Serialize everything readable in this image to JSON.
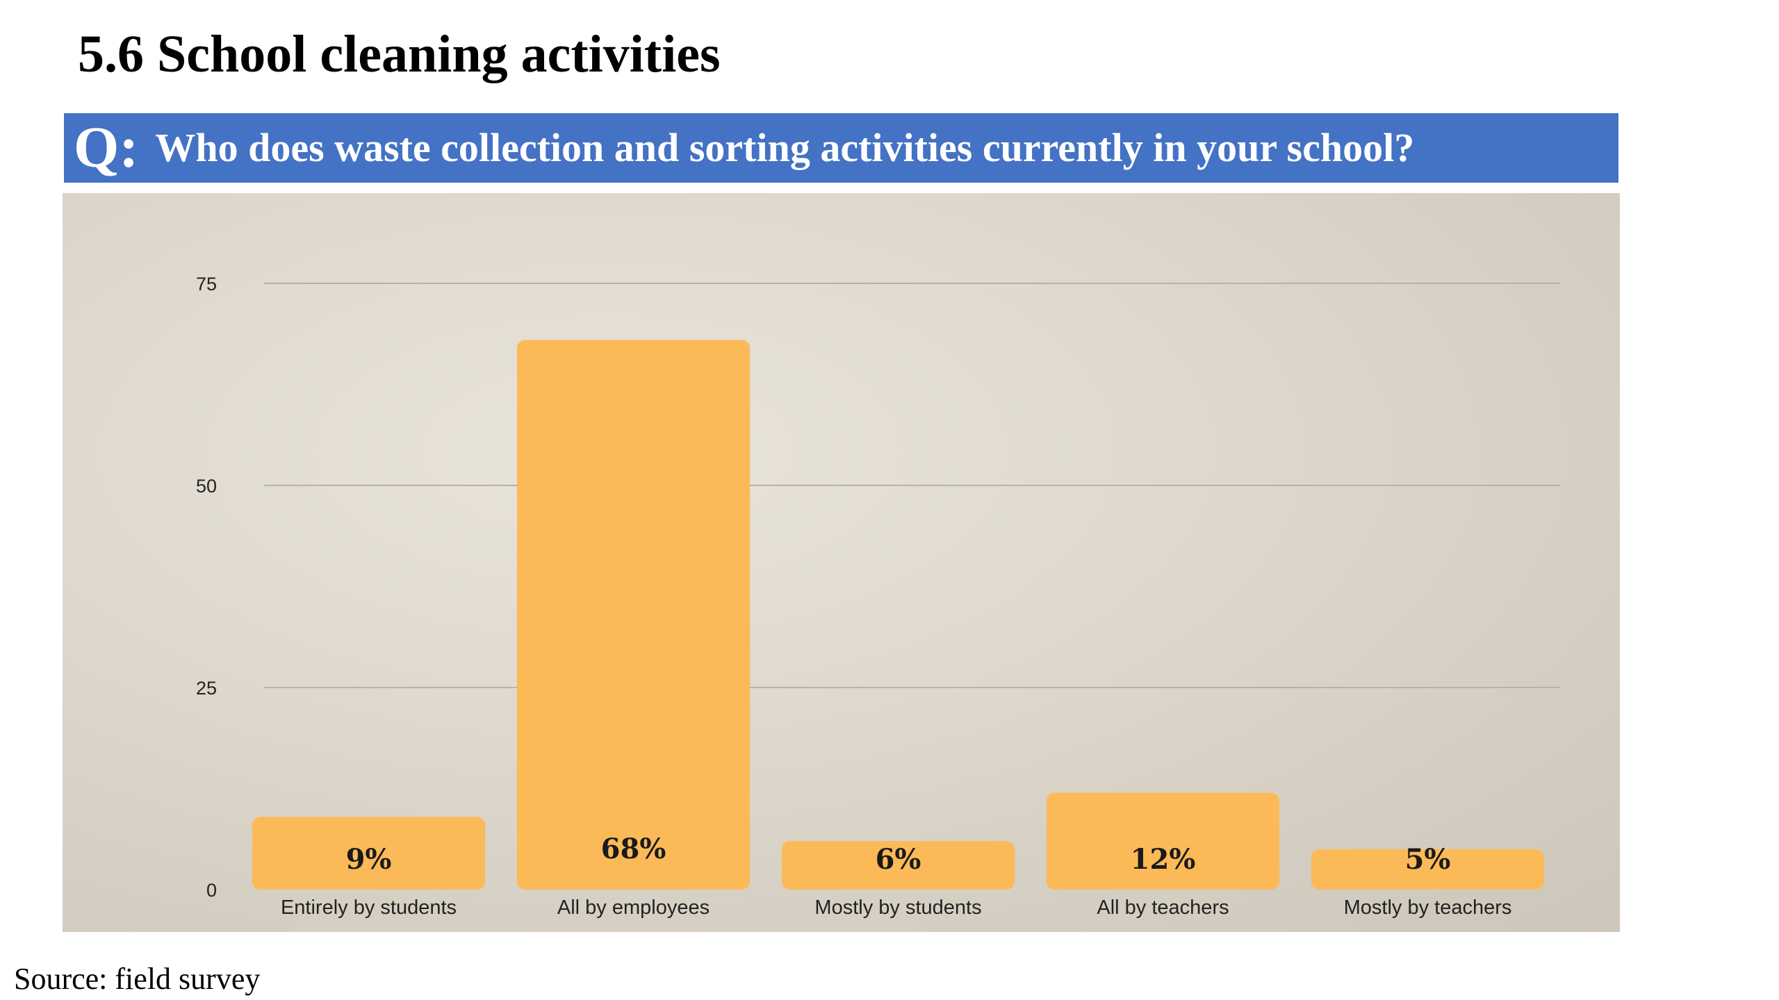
{
  "heading": "5.6 School cleaning activities",
  "question": {
    "prefix": "Q:",
    "text": "Who does waste collection and sorting activities currently in your school?"
  },
  "source": "Source: field survey",
  "colors": {
    "bar": "#fbba57",
    "question_bar": "#4472c4",
    "gridline": "#b9b2a6",
    "axis_text": "#222222"
  },
  "chart_data": {
    "type": "bar",
    "title": "",
    "xlabel": "",
    "ylabel": "",
    "categories": [
      "Entirely by students",
      "All by employees",
      "Mostly by students",
      "All by teachers",
      "Mostly by teachers"
    ],
    "values": [
      9,
      68,
      6,
      12,
      5
    ],
    "data_labels": [
      "9%",
      "68%",
      "6%",
      "12%",
      "5%"
    ],
    "ylim": [
      0,
      75
    ],
    "yticks": [
      0,
      25,
      50,
      75
    ],
    "grid": true,
    "legend": "none"
  }
}
